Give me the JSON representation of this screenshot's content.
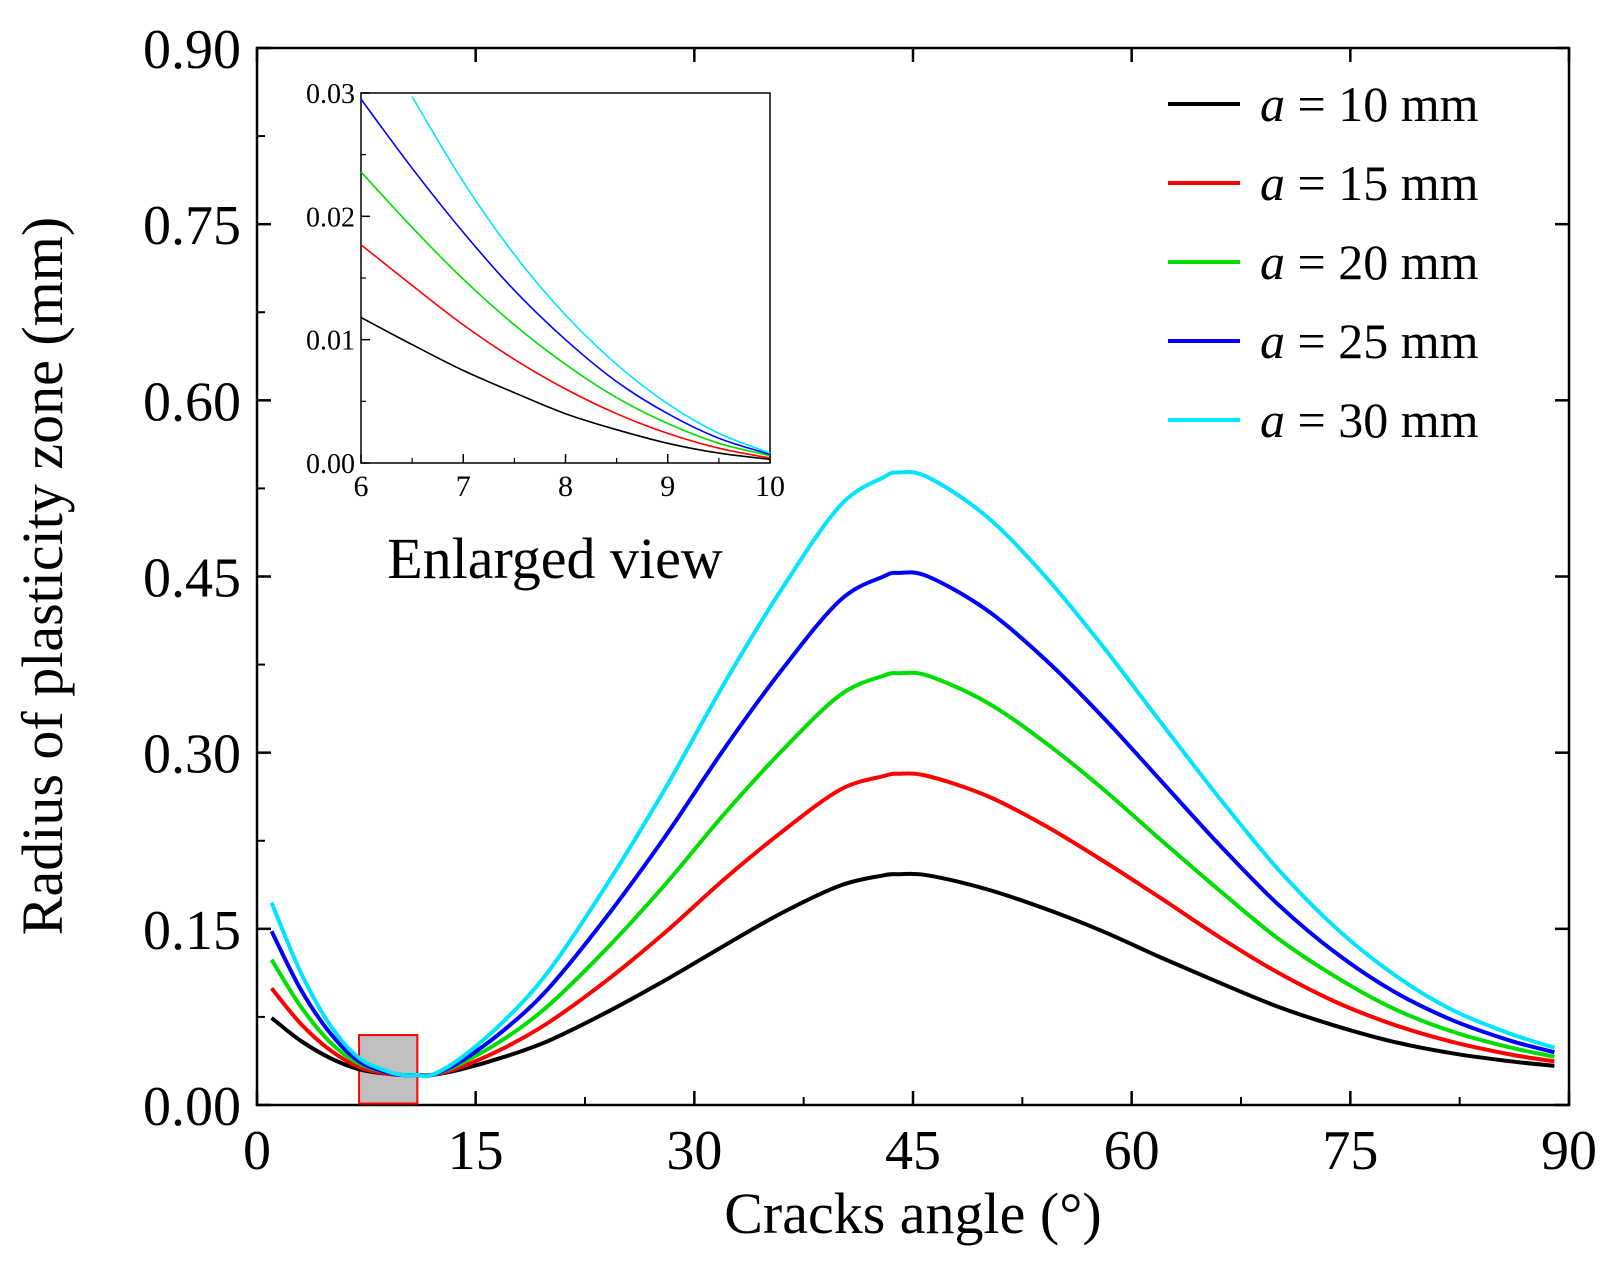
{
  "chart_data": {
    "main": {
      "type": "line",
      "xlabel": "Cracks angle (°)",
      "ylabel": "Radius of plasticity zone (mm)",
      "xlim": [
        0,
        90
      ],
      "ylim": [
        0,
        0.9
      ],
      "xticks": [
        "0",
        "15",
        "30",
        "45",
        "60",
        "75",
        "90"
      ],
      "yticks": [
        "0.00",
        "0.15",
        "0.30",
        "0.45",
        "0.60",
        "0.75",
        "0.90"
      ],
      "x": [
        1,
        3,
        5,
        7,
        9,
        10,
        11,
        12,
        14,
        17,
        20,
        24,
        28,
        32,
        36,
        40,
        43,
        44,
        46,
        50,
        54,
        58,
        62,
        66,
        70,
        74,
        78,
        82,
        86,
        89
      ],
      "grid": false,
      "legend_position": "top-right",
      "highlight_box": {
        "x": [
          7,
          11
        ],
        "y": [
          -0.025,
          0.035
        ],
        "fill": "#bfbfbf",
        "stroke": "#ff0000"
      },
      "series": [
        {
          "name": "a = 10 mm",
          "color": "#000000",
          "values": [
            0.05,
            0.03,
            0.015,
            0.005,
            0.001,
            0.0,
            0.0,
            0.0,
            0.005,
            0.016,
            0.03,
            0.055,
            0.083,
            0.113,
            0.142,
            0.166,
            0.175,
            0.176,
            0.175,
            0.163,
            0.146,
            0.126,
            0.103,
            0.081,
            0.06,
            0.043,
            0.029,
            0.019,
            0.012,
            0.008
          ]
        },
        {
          "name": "a = 15 mm",
          "color": "#ff0000",
          "values": [
            0.076,
            0.045,
            0.022,
            0.007,
            0.001,
            0.0,
            0.0,
            0.0,
            0.007,
            0.024,
            0.046,
            0.083,
            0.125,
            0.171,
            0.213,
            0.25,
            0.262,
            0.264,
            0.262,
            0.245,
            0.219,
            0.188,
            0.155,
            0.121,
            0.09,
            0.064,
            0.044,
            0.029,
            0.018,
            0.012
          ]
        },
        {
          "name": "a = 20 mm",
          "color": "#00dd00",
          "values": [
            0.101,
            0.06,
            0.029,
            0.01,
            0.002,
            0.0,
            0.0,
            0.0,
            0.01,
            0.032,
            0.061,
            0.111,
            0.167,
            0.228,
            0.284,
            0.333,
            0.35,
            0.352,
            0.35,
            0.327,
            0.292,
            0.251,
            0.206,
            0.162,
            0.12,
            0.086,
            0.058,
            0.038,
            0.024,
            0.016
          ]
        },
        {
          "name": "a = 25 mm",
          "color": "#0000ff",
          "values": [
            0.126,
            0.075,
            0.037,
            0.012,
            0.002,
            0.0,
            0.0,
            0.0,
            0.012,
            0.04,
            0.076,
            0.139,
            0.209,
            0.285,
            0.355,
            0.416,
            0.437,
            0.44,
            0.437,
            0.408,
            0.365,
            0.314,
            0.258,
            0.202,
            0.15,
            0.107,
            0.073,
            0.048,
            0.03,
            0.02
          ]
        },
        {
          "name": "a = 30 mm",
          "color": "#00e5ff",
          "values": [
            0.151,
            0.09,
            0.044,
            0.015,
            0.003,
            0.0,
            0.0,
            0.0,
            0.015,
            0.048,
            0.091,
            0.167,
            0.251,
            0.342,
            0.426,
            0.499,
            0.524,
            0.528,
            0.524,
            0.49,
            0.438,
            0.376,
            0.309,
            0.243,
            0.181,
            0.129,
            0.088,
            0.057,
            0.036,
            0.024
          ]
        }
      ]
    },
    "inset": {
      "type": "line",
      "xlabel": "Enlarged view",
      "xlim": [
        6,
        10
      ],
      "ylim": [
        0,
        0.03
      ],
      "xticks": [
        "6",
        "7",
        "8",
        "9",
        "10"
      ],
      "yticks": [
        "0.00",
        "0.01",
        "0.02",
        "0.03"
      ],
      "x": [
        6,
        6.5,
        7,
        7.5,
        8,
        8.5,
        9,
        9.5,
        10
      ],
      "series": [
        {
          "name": "a = 10 mm",
          "color": "#000000",
          "values": [
            0.0118,
            0.0096,
            0.0075,
            0.0057,
            0.004,
            0.0027,
            0.0016,
            0.0008,
            0.0003
          ]
        },
        {
          "name": "a = 15 mm",
          "color": "#ff0000",
          "values": [
            0.0177,
            0.0144,
            0.0112,
            0.0084,
            0.006,
            0.004,
            0.0024,
            0.0012,
            0.0004
          ]
        },
        {
          "name": "a = 20 mm",
          "color": "#00dd00",
          "values": [
            0.0236,
            0.0191,
            0.0149,
            0.0112,
            0.008,
            0.0053,
            0.0032,
            0.0016,
            0.0006
          ]
        },
        {
          "name": "a = 25 mm",
          "color": "#0000ff",
          "values": [
            0.0295,
            0.0239,
            0.0187,
            0.014,
            0.01,
            0.0066,
            0.004,
            0.002,
            0.0007
          ]
        },
        {
          "name": "a = 30 mm",
          "color": "#00e5ff",
          "values": [
            null,
            0.0297,
            0.0228,
            0.0169,
            0.012,
            0.008,
            0.0048,
            0.0024,
            0.0008
          ]
        }
      ]
    }
  }
}
